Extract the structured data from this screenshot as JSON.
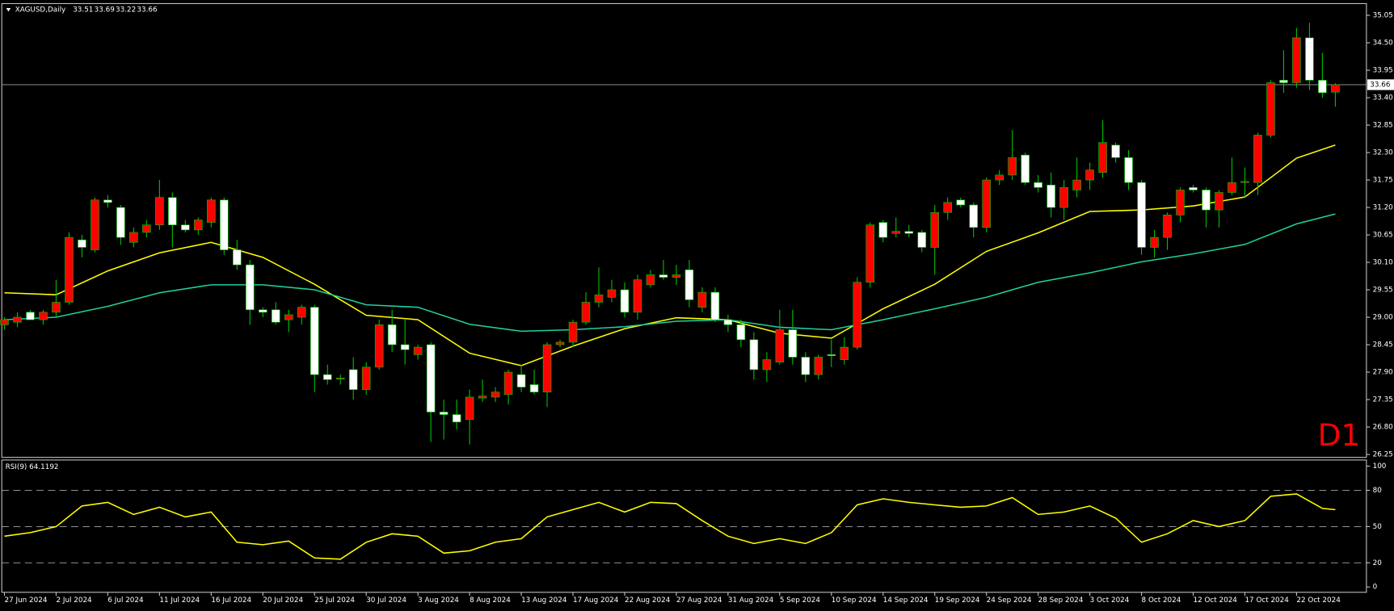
{
  "chart_data": [
    {
      "type": "candlestick",
      "title": "XAGUSD,Daily",
      "ohlc": [
        33.51,
        33.69,
        33.22,
        33.66
      ],
      "categories": [
        "27 Jun 2024",
        null,
        null,
        null,
        "2 Jul 2024",
        null,
        null,
        null,
        "6 Jul 2024",
        null,
        null,
        null,
        "11 Jul 2024",
        null,
        null,
        null,
        "16 Jul 2024",
        null,
        null,
        null,
        "20 Jul 2024",
        null,
        null,
        null,
        "25 Jul 2024",
        null,
        null,
        null,
        "30 Jul 2024",
        null,
        null,
        null,
        "3 Aug 2024",
        null,
        null,
        null,
        "8 Aug 2024",
        null,
        null,
        null,
        "13 Aug 2024",
        null,
        null,
        null,
        "17 Aug 2024",
        null,
        null,
        null,
        "22 Aug 2024",
        null,
        null,
        null,
        "27 Aug 2024",
        null,
        null,
        null,
        "31 Aug 2024",
        null,
        null,
        null,
        "5 Sep 2024",
        null,
        null,
        null,
        "10 Sep 2024",
        null,
        null,
        null,
        "14 Sep 2024",
        null,
        null,
        null,
        "19 Sep 2024",
        null,
        null,
        null,
        "24 Sep 2024",
        null,
        null,
        null,
        "28 Sep 2024",
        null,
        null,
        null,
        "3 Oct 2024",
        null,
        null,
        null,
        "8 Oct 2024",
        null,
        null,
        null,
        "12 Oct 2024",
        null,
        null,
        null,
        "17 Oct 2024",
        null,
        null,
        null,
        "22 Oct 2024",
        null,
        null,
        null
      ],
      "open": [
        28.85,
        28.9,
        29.1,
        28.95,
        29.1,
        29.3,
        30.55,
        30.35,
        31.35,
        31.2,
        30.5,
        30.7,
        30.85,
        31.4,
        30.85,
        30.75,
        30.9,
        31.35,
        30.35,
        30.05,
        29.15,
        29.15,
        28.95,
        29.0,
        29.2,
        27.85,
        27.76,
        27.95,
        27.55,
        28.0,
        28.85,
        28.45,
        28.25,
        28.45,
        27.1,
        27.05,
        26.95,
        27.38,
        27.4,
        27.45,
        27.85,
        27.65,
        27.5,
        28.45,
        28.5,
        28.9,
        29.3,
        29.4,
        29.55,
        29.1,
        29.65,
        29.85,
        29.8,
        29.95,
        29.2,
        29.5,
        28.95,
        28.85,
        28.55,
        27.95,
        28.1,
        28.75,
        28.2,
        27.85,
        28.25,
        28.15,
        28.4,
        29.7,
        30.9,
        30.68,
        30.72,
        30.7,
        30.4,
        31.1,
        31.35,
        31.25,
        30.8,
        31.75,
        31.85,
        32.25,
        31.7,
        31.65,
        31.2,
        31.55,
        31.75,
        31.9,
        32.45,
        32.2,
        31.7,
        30.4,
        30.6,
        31.05,
        31.6,
        31.55,
        31.15,
        31.5,
        31.7,
        31.7,
        32.65,
        33.75,
        33.7,
        34.6,
        33.75,
        33.51
      ],
      "high": [
        29.0,
        29.1,
        29.15,
        29.15,
        29.75,
        30.7,
        30.65,
        31.4,
        31.45,
        31.25,
        30.8,
        30.95,
        31.75,
        31.5,
        30.95,
        31.0,
        31.4,
        31.4,
        30.55,
        30.15,
        29.2,
        29.3,
        29.15,
        29.25,
        29.25,
        28.05,
        27.85,
        28.2,
        28.1,
        28.95,
        29.15,
        28.95,
        28.45,
        28.5,
        27.35,
        27.35,
        27.55,
        27.75,
        27.6,
        27.95,
        28.05,
        27.95,
        28.5,
        28.55,
        28.95,
        29.5,
        30.0,
        29.75,
        29.7,
        29.85,
        29.95,
        30.15,
        30.05,
        30.15,
        29.6,
        29.6,
        29.05,
        28.95,
        28.7,
        28.3,
        29.15,
        29.15,
        28.3,
        28.25,
        28.55,
        28.6,
        29.8,
        30.9,
        30.95,
        31.0,
        30.85,
        30.75,
        31.25,
        31.4,
        31.4,
        31.3,
        31.8,
        31.95,
        32.75,
        32.3,
        31.85,
        31.9,
        31.75,
        32.2,
        32.1,
        32.95,
        32.5,
        32.35,
        31.75,
        30.75,
        31.1,
        31.6,
        31.65,
        31.6,
        31.55,
        32.2,
        32.0,
        32.7,
        33.75,
        34.35,
        34.8,
        34.9,
        34.3,
        33.69
      ],
      "low": [
        28.75,
        28.8,
        28.95,
        28.85,
        29.0,
        29.25,
        30.2,
        30.3,
        31.2,
        30.45,
        30.4,
        30.6,
        30.75,
        30.4,
        30.7,
        30.65,
        30.8,
        30.25,
        29.95,
        28.85,
        29.0,
        28.85,
        28.7,
        28.85,
        27.5,
        27.65,
        27.65,
        27.35,
        27.45,
        27.95,
        28.3,
        28.05,
        28.15,
        26.5,
        26.55,
        26.75,
        26.45,
        27.3,
        27.3,
        27.25,
        27.5,
        27.45,
        27.2,
        28.4,
        28.4,
        28.85,
        29.2,
        29.3,
        29.0,
        28.95,
        29.6,
        29.75,
        29.65,
        29.2,
        29.1,
        28.9,
        28.7,
        28.4,
        27.75,
        27.7,
        28.05,
        28.05,
        27.7,
        27.75,
        28.0,
        28.05,
        28.35,
        29.6,
        30.5,
        30.6,
        30.6,
        30.3,
        29.85,
        30.95,
        31.2,
        30.6,
        30.7,
        31.65,
        31.75,
        31.65,
        31.5,
        31.0,
        30.95,
        31.4,
        31.55,
        31.8,
        32.1,
        31.55,
        30.25,
        30.2,
        30.35,
        30.9,
        31.5,
        30.8,
        30.8,
        31.45,
        31.4,
        31.45,
        32.6,
        33.5,
        33.6,
        33.55,
        33.4,
        33.22
      ],
      "close": [
        28.95,
        29.0,
        28.95,
        29.1,
        29.3,
        30.6,
        30.4,
        31.35,
        31.3,
        30.6,
        30.7,
        30.85,
        31.4,
        30.85,
        30.75,
        30.95,
        31.35,
        30.35,
        30.05,
        29.15,
        29.1,
        28.9,
        29.05,
        29.2,
        27.85,
        27.75,
        27.78,
        27.55,
        28.0,
        28.85,
        28.45,
        28.35,
        28.4,
        27.1,
        27.05,
        26.9,
        27.4,
        27.42,
        27.5,
        27.9,
        27.6,
        27.5,
        28.45,
        28.5,
        28.9,
        29.3,
        29.45,
        29.55,
        29.1,
        29.75,
        29.85,
        29.8,
        29.85,
        29.35,
        29.5,
        28.95,
        28.85,
        28.55,
        27.95,
        28.15,
        28.75,
        28.2,
        27.85,
        28.2,
        28.23,
        28.4,
        29.7,
        30.85,
        30.6,
        30.72,
        30.68,
        30.4,
        31.1,
        31.3,
        31.25,
        30.8,
        31.75,
        31.85,
        32.2,
        31.7,
        31.6,
        31.2,
        31.6,
        31.75,
        31.95,
        32.5,
        32.2,
        31.7,
        30.4,
        30.6,
        31.05,
        31.55,
        31.55,
        31.15,
        31.5,
        31.7,
        31.72,
        32.65,
        33.7,
        33.7,
        34.6,
        33.75,
        33.5,
        33.66
      ],
      "up_color": "#ff0000",
      "down_color": "#ffffff",
      "wick_color": "#00c000",
      "ylim": [
        26.21,
        35.25
      ],
      "yticks": [
        35.05,
        {
          "value": 34.5,
          "label": "34.50"
        },
        33.95,
        {
          "value": 33.4,
          "label": "33.40"
        },
        32.85,
        {
          "value": 32.3,
          "label": "32.30"
        },
        31.75,
        {
          "value": 31.2,
          "label": "31.20"
        },
        30.65,
        {
          "value": 30.1,
          "label": "30.10"
        },
        29.55,
        {
          "value": 29.0,
          "label": "29.00"
        },
        28.45,
        {
          "value": 27.9,
          "label": "27.90"
        },
        27.35,
        {
          "value": 26.8,
          "label": "26.80"
        },
        26.25
      ],
      "price_line": 33.66,
      "overlays": [
        {
          "color": "#ffff00",
          "x": [
            0,
            4,
            8,
            12,
            16,
            20,
            24,
            28,
            32,
            36,
            40,
            44,
            48,
            52,
            56,
            60,
            64,
            68,
            72,
            76,
            80,
            84,
            88,
            92,
            96,
            100,
            103
          ],
          "values": [
            29.49,
            29.45,
            29.93,
            30.29,
            30.5,
            30.2,
            29.66,
            29.04,
            28.95,
            28.28,
            28.03,
            28.42,
            28.77,
            28.99,
            28.95,
            28.68,
            28.58,
            29.17,
            29.66,
            30.32,
            30.69,
            31.12,
            31.15,
            31.23,
            31.41,
            32.19,
            32.45
          ]
        },
        {
          "color": "#20d0a0",
          "x": [
            0,
            4,
            8,
            12,
            16,
            20,
            24,
            28,
            32,
            36,
            40,
            44,
            48,
            52,
            56,
            60,
            64,
            68,
            72,
            76,
            80,
            84,
            88,
            92,
            96,
            100,
            103
          ],
          "values": [
            28.95,
            29.0,
            29.22,
            29.49,
            29.65,
            29.65,
            29.55,
            29.25,
            29.2,
            28.86,
            28.72,
            28.75,
            28.81,
            28.92,
            28.95,
            28.8,
            28.75,
            28.95,
            29.17,
            29.4,
            29.7,
            29.89,
            30.11,
            30.27,
            30.46,
            30.87,
            31.07
          ]
        }
      ],
      "annotation": "D1"
    },
    {
      "type": "line",
      "title": "RSI(9) 64.1192",
      "color": "#ffff00",
      "x": [
        0,
        2,
        4,
        6,
        8,
        10,
        12,
        14,
        16,
        18,
        20,
        22,
        24,
        26,
        28,
        30,
        32,
        34,
        36,
        38,
        40,
        42,
        44,
        46,
        48,
        50,
        52,
        54,
        56,
        58,
        60,
        62,
        64,
        66,
        68,
        70,
        72,
        74,
        76,
        78,
        80,
        82,
        84,
        86,
        88,
        90,
        92,
        94,
        96,
        98,
        100,
        102,
        103
      ],
      "values": [
        42,
        45,
        50,
        67,
        70,
        60,
        66,
        58,
        62,
        37,
        35,
        38,
        24,
        23,
        37,
        44,
        42,
        28,
        30,
        37,
        40,
        58,
        64,
        70,
        62,
        70,
        69,
        55,
        42,
        36,
        40,
        36,
        45,
        68,
        73,
        70,
        68,
        66,
        67,
        74,
        60,
        62,
        67,
        57,
        37,
        44,
        55,
        50,
        55,
        75,
        77,
        65,
        64
      ],
      "ylim": [
        -3.7,
        105.1
      ],
      "yticks": [
        100,
        80,
        50,
        20,
        0
      ],
      "levels": [
        80,
        50,
        20
      ]
    }
  ]
}
